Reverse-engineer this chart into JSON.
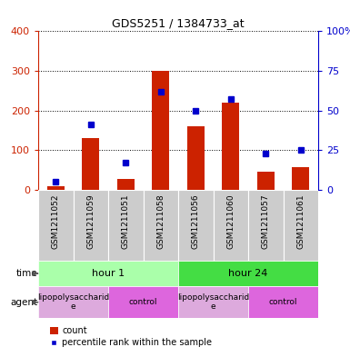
{
  "title": "GDS5251 / 1384733_at",
  "samples": [
    "GSM1211052",
    "GSM1211059",
    "GSM1211051",
    "GSM1211058",
    "GSM1211056",
    "GSM1211060",
    "GSM1211057",
    "GSM1211061"
  ],
  "counts": [
    10,
    130,
    28,
    300,
    160,
    220,
    45,
    58
  ],
  "percentiles": [
    5,
    41,
    17,
    62,
    50,
    57,
    23,
    25
  ],
  "ylim_left": [
    0,
    400
  ],
  "ylim_right": [
    0,
    100
  ],
  "yticks_left": [
    0,
    100,
    200,
    300,
    400
  ],
  "yticks_right": [
    0,
    25,
    50,
    75,
    100
  ],
  "time_groups": [
    {
      "label": "hour 1",
      "start": 0,
      "end": 4,
      "color": "#aaffaa"
    },
    {
      "label": "hour 24",
      "start": 4,
      "end": 8,
      "color": "#44dd44"
    }
  ],
  "agent_groups": [
    {
      "label": "lipopolysaccharid\ne",
      "start": 0,
      "end": 2,
      "color": "#ddaadd"
    },
    {
      "label": "control",
      "start": 2,
      "end": 4,
      "color": "#dd66dd"
    },
    {
      "label": "lipopolysaccharid\ne",
      "start": 4,
      "end": 6,
      "color": "#ddaadd"
    },
    {
      "label": "control",
      "start": 6,
      "end": 8,
      "color": "#dd66dd"
    }
  ],
  "bar_color": "#cc2200",
  "dot_color": "#0000cc",
  "sample_bg": "#cccccc",
  "plot_bg": "#ffffff",
  "tick_color_left": "#cc2200",
  "tick_color_right": "#0000cc",
  "label_time": "time",
  "label_agent": "agent",
  "legend_count": "count",
  "legend_percentile": "percentile rank within the sample"
}
